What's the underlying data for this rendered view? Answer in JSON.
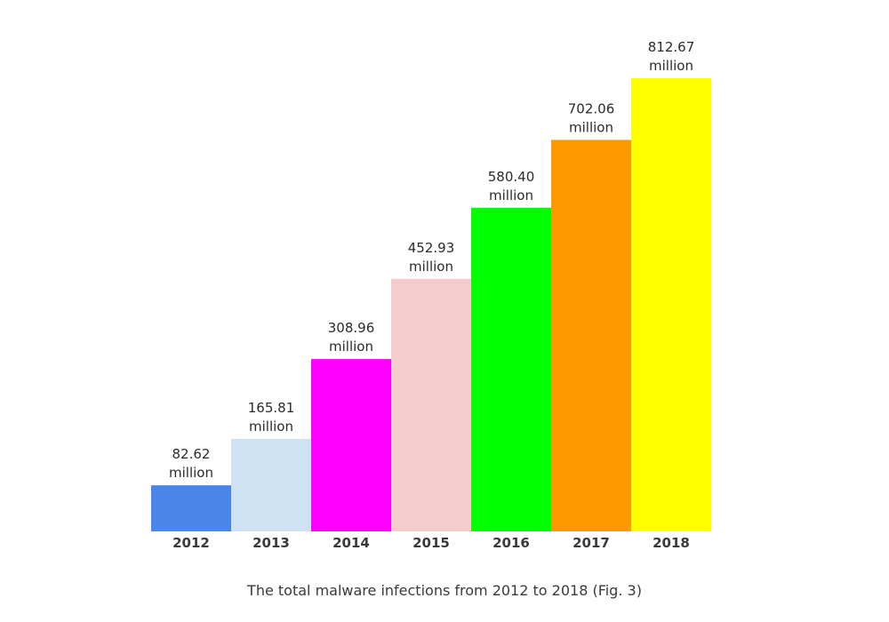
{
  "chart_data": {
    "type": "bar",
    "title": "",
    "caption": "The total malware infections from 2012 to 2018 (Fig. 3)",
    "xlabel": "",
    "ylabel": "",
    "ylim": [
      0,
      812.67
    ],
    "grid": false,
    "categories": [
      "2012",
      "2013",
      "2014",
      "2015",
      "2016",
      "2017",
      "2018"
    ],
    "values": [
      82.62,
      165.81,
      308.96,
      452.93,
      580.4,
      702.06,
      812.67
    ],
    "data_labels": [
      "82.62",
      "165.81",
      "308.96",
      "452.93",
      "580.40",
      "702.06",
      "812.67"
    ],
    "unit_label": "million",
    "colors": [
      "#4a86e8",
      "#cfe2f3",
      "#ff00ff",
      "#f4cccc",
      "#00ff00",
      "#ff9900",
      "#ffff00"
    ]
  }
}
